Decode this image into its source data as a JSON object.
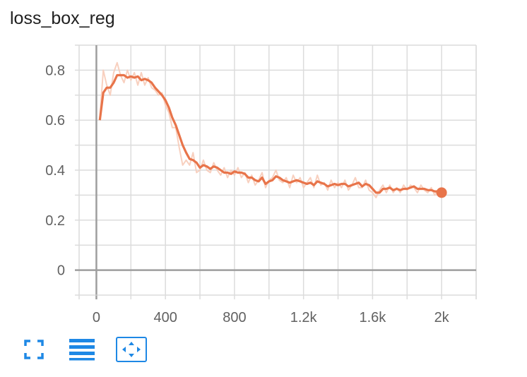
{
  "card": {
    "title": "loss_box_reg"
  },
  "toolbar": {
    "buttons": [
      {
        "icon": "fullscreen-icon"
      },
      {
        "icon": "legend-list-icon"
      },
      {
        "icon": "fit-domain-icon"
      }
    ]
  },
  "colors": {
    "accent": "#1e88e5",
    "smoothed": "#e8744a",
    "raw": "#f7cbb8",
    "axis": "#9e9e9e",
    "grid": "#dcdcdc"
  },
  "chart_data": {
    "type": "line",
    "title": "loss_box_reg",
    "xlabel": "",
    "ylabel": "",
    "xlim": [
      -100,
      2200
    ],
    "ylim": [
      -0.1,
      0.9
    ],
    "grid": true,
    "x_ticks": [
      0,
      400,
      800,
      1200,
      1600,
      2000
    ],
    "x_tick_labels": [
      "0",
      "400",
      "800",
      "1.2k",
      "1.6k",
      "2k"
    ],
    "y_ticks": [
      0,
      0.2,
      0.4,
      0.6,
      0.8
    ],
    "y_tick_labels": [
      "0",
      "0.2",
      "0.4",
      "0.6",
      "0.8"
    ],
    "series": [
      {
        "role": "smoothed",
        "x": [
          20,
          40,
          60,
          80,
          100,
          120,
          140,
          160,
          180,
          200,
          220,
          240,
          260,
          280,
          300,
          320,
          340,
          360,
          380,
          400,
          420,
          440,
          460,
          480,
          500,
          520,
          540,
          560,
          580,
          600,
          620,
          640,
          660,
          680,
          700,
          720,
          740,
          760,
          780,
          800,
          820,
          840,
          860,
          880,
          900,
          920,
          940,
          960,
          980,
          1000,
          1020,
          1040,
          1060,
          1080,
          1100,
          1120,
          1140,
          1160,
          1180,
          1200,
          1220,
          1240,
          1260,
          1280,
          1300,
          1320,
          1340,
          1360,
          1380,
          1400,
          1420,
          1440,
          1460,
          1480,
          1500,
          1520,
          1540,
          1560,
          1580,
          1600,
          1620,
          1640,
          1660,
          1680,
          1700,
          1720,
          1740,
          1760,
          1780,
          1800,
          1820,
          1840,
          1860,
          1880,
          1900,
          1920,
          1940,
          1960,
          1980,
          2000
        ],
        "y": [
          0.6,
          0.71,
          0.73,
          0.73,
          0.75,
          0.78,
          0.78,
          0.78,
          0.77,
          0.775,
          0.77,
          0.775,
          0.76,
          0.765,
          0.76,
          0.75,
          0.73,
          0.715,
          0.7,
          0.68,
          0.65,
          0.61,
          0.58,
          0.54,
          0.5,
          0.47,
          0.445,
          0.44,
          0.43,
          0.41,
          0.42,
          0.415,
          0.405,
          0.415,
          0.41,
          0.4,
          0.39,
          0.39,
          0.385,
          0.395,
          0.39,
          0.39,
          0.385,
          0.37,
          0.37,
          0.36,
          0.355,
          0.37,
          0.345,
          0.355,
          0.36,
          0.375,
          0.37,
          0.36,
          0.355,
          0.35,
          0.355,
          0.36,
          0.355,
          0.35,
          0.345,
          0.35,
          0.34,
          0.355,
          0.35,
          0.345,
          0.335,
          0.34,
          0.345,
          0.34,
          0.345,
          0.345,
          0.335,
          0.34,
          0.345,
          0.35,
          0.335,
          0.345,
          0.34,
          0.325,
          0.31,
          0.31,
          0.325,
          0.325,
          0.33,
          0.32,
          0.325,
          0.32,
          0.325,
          0.325,
          0.33,
          0.335,
          0.325,
          0.325,
          0.325,
          0.32,
          0.32,
          0.315,
          0.315,
          0.31
        ]
      },
      {
        "role": "raw",
        "x": [
          20,
          40,
          60,
          80,
          100,
          120,
          140,
          160,
          180,
          200,
          220,
          240,
          260,
          280,
          300,
          320,
          340,
          360,
          380,
          400,
          420,
          440,
          460,
          480,
          500,
          520,
          540,
          560,
          580,
          600,
          620,
          640,
          660,
          680,
          700,
          720,
          740,
          760,
          780,
          800,
          820,
          840,
          860,
          880,
          900,
          920,
          940,
          960,
          980,
          1000,
          1020,
          1040,
          1060,
          1080,
          1100,
          1120,
          1140,
          1160,
          1180,
          1200,
          1220,
          1240,
          1260,
          1280,
          1300,
          1320,
          1340,
          1360,
          1380,
          1400,
          1420,
          1440,
          1460,
          1480,
          1500,
          1520,
          1540,
          1560,
          1580,
          1600,
          1620,
          1640,
          1660,
          1680,
          1700,
          1720,
          1740,
          1760,
          1780,
          1800,
          1820,
          1840,
          1860,
          1880,
          1900,
          1920,
          1940,
          1960,
          1980,
          2000
        ],
        "y": [
          0.61,
          0.8,
          0.74,
          0.7,
          0.79,
          0.83,
          0.78,
          0.75,
          0.8,
          0.76,
          0.79,
          0.74,
          0.79,
          0.74,
          0.77,
          0.73,
          0.72,
          0.7,
          0.71,
          0.66,
          0.63,
          0.57,
          0.57,
          0.49,
          0.42,
          0.44,
          0.42,
          0.47,
          0.39,
          0.4,
          0.44,
          0.4,
          0.39,
          0.43,
          0.4,
          0.38,
          0.41,
          0.37,
          0.4,
          0.38,
          0.41,
          0.37,
          0.39,
          0.35,
          0.38,
          0.34,
          0.36,
          0.39,
          0.33,
          0.36,
          0.37,
          0.4,
          0.36,
          0.35,
          0.37,
          0.33,
          0.38,
          0.35,
          0.37,
          0.33,
          0.35,
          0.37,
          0.33,
          0.38,
          0.34,
          0.35,
          0.32,
          0.36,
          0.33,
          0.35,
          0.33,
          0.36,
          0.32,
          0.34,
          0.37,
          0.33,
          0.33,
          0.36,
          0.32,
          0.31,
          0.29,
          0.32,
          0.34,
          0.31,
          0.34,
          0.31,
          0.33,
          0.31,
          0.34,
          0.32,
          0.34,
          0.33,
          0.31,
          0.34,
          0.32,
          0.31,
          0.33,
          0.3,
          0.32,
          0.31
        ]
      }
    ]
  }
}
